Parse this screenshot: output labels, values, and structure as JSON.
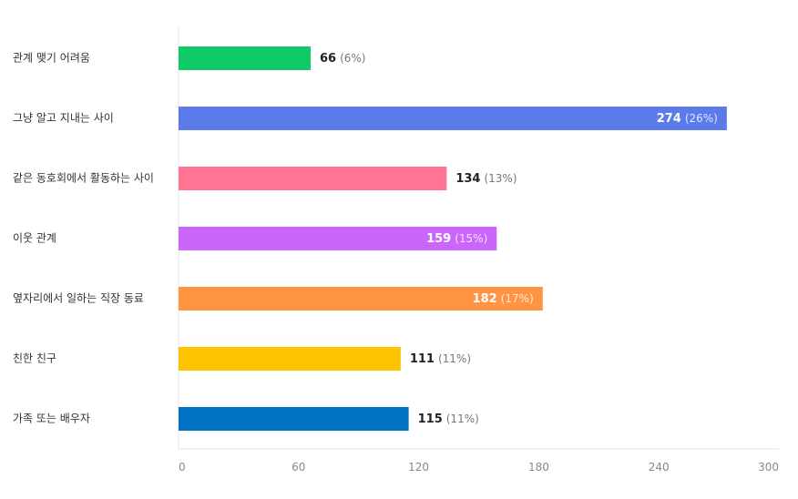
{
  "chart_data": {
    "type": "bar",
    "orientation": "horizontal",
    "title": "",
    "xlabel": "",
    "ylabel": "",
    "categories": [
      "관계 맺기 어려움",
      "그냥 알고 지내는 사이",
      "같은 동호회에서 활동하는 사이",
      "이웃 관계",
      "옆자리에서 일하는 직장 동료",
      "친한 친구",
      "가족 또는 배우자"
    ],
    "values": [
      66,
      274,
      134,
      159,
      182,
      111,
      115
    ],
    "percent_labels": [
      "(6%)",
      "(26%)",
      "(13%)",
      "(15%)",
      "(17%)",
      "(11%)",
      "(11%)"
    ],
    "colors": [
      "#0ECB67",
      "#5B7BEB",
      "#FF7593",
      "#CB66FB",
      "#FF9442",
      "#FDC300",
      "#0074C3"
    ],
    "label_inside": [
      false,
      true,
      false,
      true,
      true,
      false,
      false
    ],
    "xlim": [
      0,
      300
    ],
    "xticks": [
      0,
      60,
      120,
      180,
      240,
      300
    ],
    "grid": false,
    "legend": "none"
  }
}
